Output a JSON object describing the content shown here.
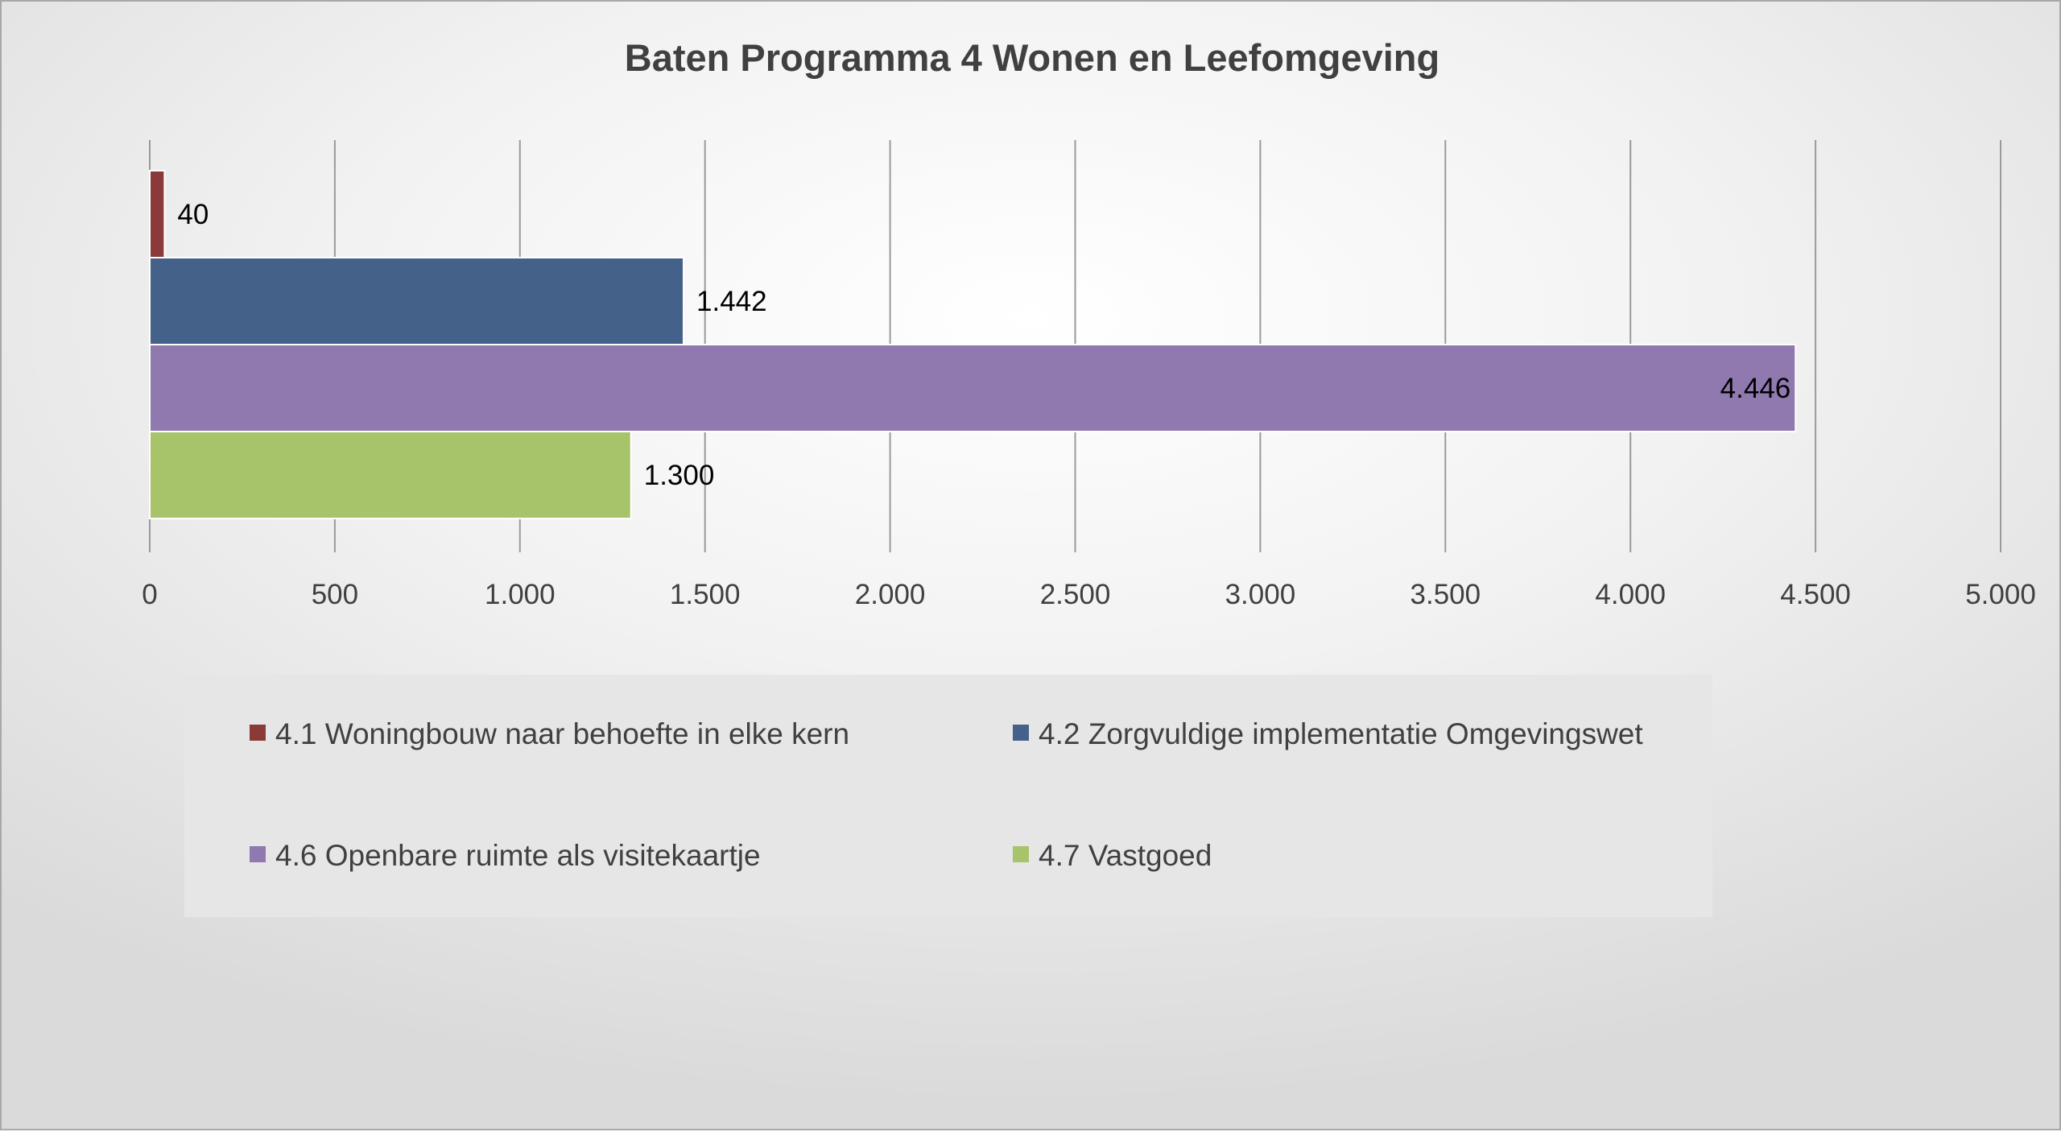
{
  "chart_data": {
    "type": "bar",
    "orientation": "horizontal",
    "title": "Baten Programma 4 Wonen en Leefomgeving",
    "xlabel": "",
    "ylabel": "",
    "xlim": [
      0,
      5000
    ],
    "ticks": [
      0,
      500,
      1000,
      1500,
      2000,
      2500,
      3000,
      3500,
      4000,
      4500,
      5000
    ],
    "tick_labels": [
      "0",
      "500",
      "1.000",
      "1.500",
      "2.000",
      "2.500",
      "3.000",
      "3.500",
      "4.000",
      "4.500",
      "5.000"
    ],
    "grid": true,
    "legend_position": "bottom",
    "series": [
      {
        "name": "4.1 Woningbouw naar behoefte in elke kern",
        "value": 40,
        "label": "40",
        "color": "#8B3A3A",
        "label_position": "outside"
      },
      {
        "name": "4.2 Zorgvuldige implementatie Omgevingswet",
        "value": 1442,
        "label": "1.442",
        "color": "#44618A",
        "label_position": "outside"
      },
      {
        "name": "4.6 Openbare ruimte als visitekaartje",
        "value": 4446,
        "label": "4.446",
        "color": "#9079AF",
        "label_position": "inside"
      },
      {
        "name": "4.7 Vastgoed",
        "value": 1300,
        "label": "1.300",
        "color": "#A7C46A",
        "label_position": "outside"
      }
    ]
  }
}
